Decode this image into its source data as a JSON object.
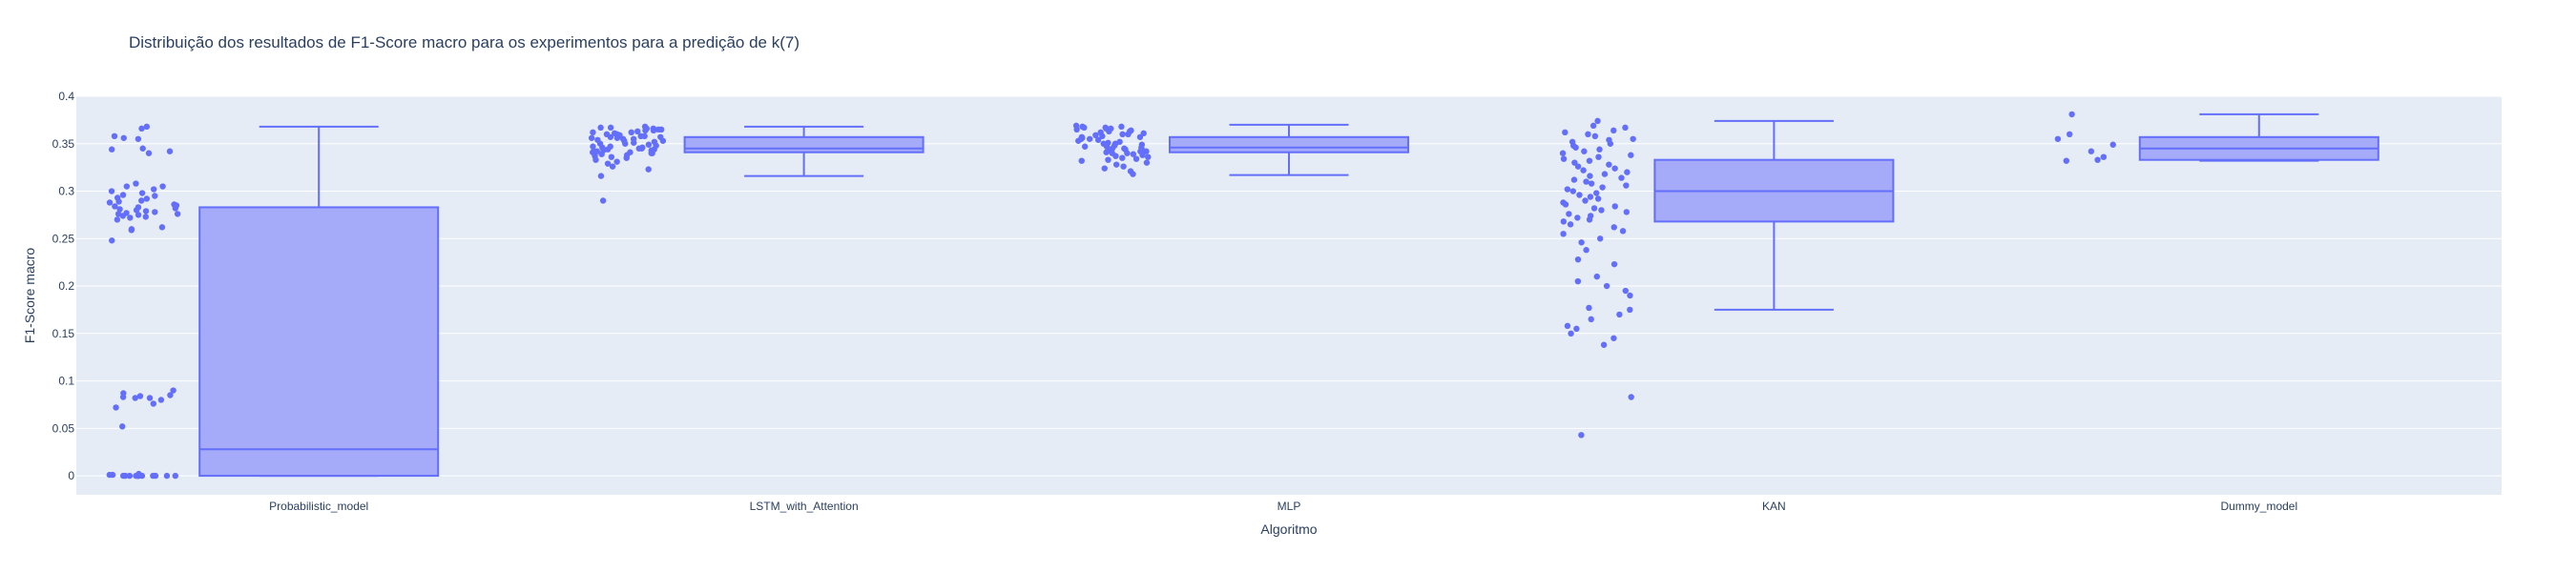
{
  "chart_data": {
    "type": "box",
    "title": "Distribuição dos resultados de F1-Score macro para os experimentos para a predição de k(7)",
    "xlabel": "Algoritmo",
    "ylabel": "F1-Score macro",
    "ylim": [
      -0.02,
      0.4
    ],
    "yticks": [
      0,
      0.05,
      0.1,
      0.15,
      0.2,
      0.25,
      0.3,
      0.35,
      0.4
    ],
    "ytick_labels": [
      "0",
      "0.05",
      "0.1",
      "0.15",
      "0.2",
      "0.25",
      "0.3",
      "0.35",
      "0.4"
    ],
    "grid": true,
    "points_shown": "all",
    "colors": {
      "plot_bg": "#e5ecf6",
      "grid": "#ffffff",
      "box_line": "#636efa",
      "box_fill": "#a5abf9",
      "point": "#636efa",
      "text": "#2a3f5f"
    },
    "categories": [
      "Probabilistic_model",
      "LSTM_with_Attention",
      "MLP",
      "KAN",
      "Dummy_model"
    ],
    "boxes": [
      {
        "category": "Probabilistic_model",
        "lower_fence": 0.0,
        "q1": 0.0,
        "median": 0.028,
        "q3": 0.283,
        "upper_fence": 0.368
      },
      {
        "category": "LSTM_with_Attention",
        "lower_fence": 0.316,
        "q1": 0.341,
        "median": 0.345,
        "q3": 0.357,
        "upper_fence": 0.368
      },
      {
        "category": "MLP",
        "lower_fence": 0.317,
        "q1": 0.341,
        "median": 0.346,
        "q3": 0.357,
        "upper_fence": 0.37
      },
      {
        "category": "KAN",
        "lower_fence": 0.175,
        "q1": 0.268,
        "median": 0.3,
        "q3": 0.333,
        "upper_fence": 0.374
      },
      {
        "category": "Dummy_model",
        "lower_fence": 0.332,
        "q1": 0.333,
        "median": 0.345,
        "q3": 0.357,
        "upper_fence": 0.381
      }
    ],
    "points": [
      {
        "category": "Probabilistic_model",
        "values": [
          0.366,
          0.368,
          0.358,
          0.356,
          0.355,
          0.345,
          0.344,
          0.342,
          0.34,
          0.308,
          0.305,
          0.305,
          0.302,
          0.3,
          0.298,
          0.296,
          0.295,
          0.293,
          0.292,
          0.29,
          0.289,
          0.288,
          0.286,
          0.285,
          0.284,
          0.283,
          0.282,
          0.281,
          0.28,
          0.279,
          0.278,
          0.277,
          0.276,
          0.276,
          0.275,
          0.274,
          0.273,
          0.272,
          0.27,
          0.262,
          0.26,
          0.259,
          0.248,
          0.09,
          0.087,
          0.085,
          0.084,
          0.083,
          0.082,
          0.082,
          0.08,
          0.076,
          0.072,
          0.052,
          0.002,
          0.001,
          0.001,
          0.0,
          0.0,
          0.0,
          0.0,
          0.0,
          0.0,
          0.0,
          0.0,
          0.0,
          0.0,
          0.0,
          0.0,
          0.0
        ]
      },
      {
        "category": "LSTM_with_Attention",
        "values": [
          0.368,
          0.367,
          0.367,
          0.366,
          0.366,
          0.365,
          0.365,
          0.364,
          0.364,
          0.363,
          0.362,
          0.362,
          0.361,
          0.36,
          0.36,
          0.359,
          0.358,
          0.358,
          0.357,
          0.357,
          0.356,
          0.356,
          0.355,
          0.355,
          0.354,
          0.353,
          0.353,
          0.352,
          0.351,
          0.35,
          0.35,
          0.349,
          0.348,
          0.347,
          0.347,
          0.346,
          0.346,
          0.345,
          0.345,
          0.344,
          0.344,
          0.343,
          0.343,
          0.342,
          0.342,
          0.341,
          0.341,
          0.34,
          0.34,
          0.339,
          0.338,
          0.337,
          0.336,
          0.335,
          0.333,
          0.331,
          0.329,
          0.326,
          0.323,
          0.316,
          0.29
        ]
      },
      {
        "category": "MLP",
        "values": [
          0.369,
          0.368,
          0.368,
          0.367,
          0.367,
          0.366,
          0.366,
          0.365,
          0.364,
          0.363,
          0.363,
          0.362,
          0.361,
          0.36,
          0.36,
          0.359,
          0.358,
          0.357,
          0.357,
          0.356,
          0.355,
          0.355,
          0.354,
          0.353,
          0.352,
          0.351,
          0.35,
          0.35,
          0.349,
          0.348,
          0.347,
          0.347,
          0.346,
          0.345,
          0.345,
          0.344,
          0.344,
          0.343,
          0.342,
          0.342,
          0.341,
          0.34,
          0.34,
          0.339,
          0.338,
          0.337,
          0.336,
          0.335,
          0.334,
          0.333,
          0.332,
          0.33,
          0.328,
          0.326,
          0.324,
          0.321,
          0.318
        ]
      },
      {
        "category": "KAN",
        "values": [
          0.374,
          0.369,
          0.367,
          0.364,
          0.362,
          0.36,
          0.358,
          0.355,
          0.354,
          0.352,
          0.35,
          0.348,
          0.346,
          0.344,
          0.342,
          0.34,
          0.338,
          0.336,
          0.334,
          0.332,
          0.33,
          0.328,
          0.326,
          0.324,
          0.322,
          0.32,
          0.318,
          0.316,
          0.314,
          0.312,
          0.31,
          0.308,
          0.306,
          0.304,
          0.302,
          0.3,
          0.298,
          0.296,
          0.294,
          0.292,
          0.29,
          0.288,
          0.286,
          0.284,
          0.282,
          0.28,
          0.278,
          0.276,
          0.274,
          0.272,
          0.27,
          0.268,
          0.265,
          0.262,
          0.258,
          0.255,
          0.25,
          0.246,
          0.238,
          0.228,
          0.223,
          0.21,
          0.205,
          0.2,
          0.195,
          0.19,
          0.177,
          0.175,
          0.17,
          0.165,
          0.158,
          0.155,
          0.15,
          0.145,
          0.138,
          0.083,
          0.043
        ]
      },
      {
        "category": "Dummy_model",
        "values": [
          0.381,
          0.36,
          0.355,
          0.349,
          0.342,
          0.336,
          0.333,
          0.332
        ]
      }
    ]
  }
}
